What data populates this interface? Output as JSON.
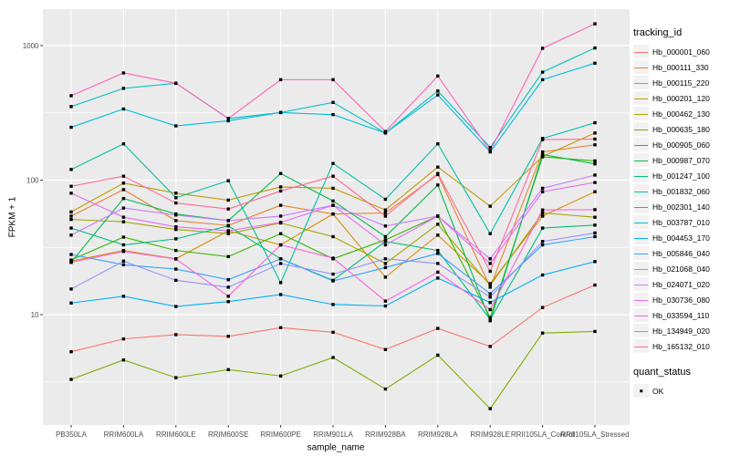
{
  "chart_data": {
    "type": "line",
    "title": "",
    "xlabel": "sample_name",
    "ylabel": "FPKM + 1",
    "y_scale": "log10",
    "y_tick_labels": [
      "10",
      "100",
      "1000"
    ],
    "y_ticks": [
      10,
      100,
      1000
    ],
    "y_minor_ticks": [
      3.1623,
      31.623,
      316.23
    ],
    "ylim": [
      1.5,
      1900
    ],
    "grid": true,
    "legend_position": "right",
    "panel_bg": "#EBEBEB",
    "grid_color": "#FFFFFF",
    "point_color": "#000000",
    "tick_label_color": "#4D4D4D",
    "legend_title": "tracking_id",
    "quant_status": {
      "title": "quant_status",
      "items": [
        {
          "label": "OK"
        }
      ]
    },
    "categories": [
      "PB350LA",
      "RRIM600LA",
      "RRIM600LE",
      "RRIM600SE",
      "RRIM600PE",
      "RRIM901LA",
      "RRIM928BA",
      "RRIM928LA",
      "RRIM928LE",
      "RRII105LA_Control",
      "RRII105LA_Stressed"
    ],
    "series": [
      {
        "name": "Hb_000001_060",
        "color": "#F8766D",
        "values": [
          5.3,
          6.6,
          7.1,
          6.9,
          8.0,
          7.4,
          5.5,
          7.9,
          5.8,
          11.3,
          16.6
        ]
      },
      {
        "name": "Hb_000111_330",
        "color": "#EA8331",
        "values": [
          54,
          85,
          50,
          46,
          65,
          56,
          57,
          110,
          16,
          162,
          183
        ]
      },
      {
        "name": "Hb_000115_220",
        "color": "#D89000",
        "values": [
          25,
          30,
          26,
          42,
          33,
          56,
          19,
          39,
          17,
          54,
          82
        ]
      },
      {
        "name": "Hb_000201_120",
        "color": "#C09B00",
        "values": [
          58,
          95,
          80,
          71,
          89,
          87,
          60,
          125,
          64,
          150,
          224
        ]
      },
      {
        "name": "Hb_000462_130",
        "color": "#A3A500",
        "values": [
          51,
          49,
          43,
          40,
          48,
          38,
          24,
          47,
          16.5,
          57,
          53
        ]
      },
      {
        "name": "Hb_000635_180",
        "color": "#7CAE00",
        "values": [
          3.3,
          4.6,
          3.4,
          3.9,
          3.5,
          4.8,
          2.8,
          5.0,
          2.0,
          7.3,
          7.5
        ]
      },
      {
        "name": "Hb_000905_060",
        "color": "#39B600",
        "values": [
          25.5,
          37.7,
          30,
          27,
          40,
          26,
          36,
          54,
          9.5,
          149,
          139
        ]
      },
      {
        "name": "Hb_000987_070",
        "color": "#00BB4E",
        "values": [
          24.5,
          73,
          56,
          50,
          112,
          70,
          38,
          92,
          9.0,
          155,
          132
        ]
      },
      {
        "name": "Hb_001247_100",
        "color": "#00BF7D",
        "values": [
          44,
          33,
          36.6,
          45.7,
          26,
          18,
          35,
          30,
          9.2,
          44,
          46.3
        ]
      },
      {
        "name": "Hb_001832_060",
        "color": "#00C1A3",
        "values": [
          120,
          186,
          74,
          99,
          17.3,
          133,
          72,
          186,
          40,
          204,
          267
        ]
      },
      {
        "name": "Hb_002301_140",
        "color": "#00BFC4",
        "values": [
          352,
          481,
          525,
          287,
          318,
          378,
          224,
          460,
          175,
          635,
          960
        ]
      },
      {
        "name": "Hb_003787_010",
        "color": "#00BAE0",
        "values": [
          247,
          338,
          253,
          276,
          318,
          307,
          224,
          430,
          162,
          558,
          740
        ]
      },
      {
        "name": "Hb_004453_170",
        "color": "#00B0F6",
        "values": [
          12.2,
          13.7,
          11.5,
          12.5,
          14.1,
          11.9,
          11.6,
          18.7,
          12.3,
          19.7,
          24.8
        ]
      },
      {
        "name": "Hb_005846_040",
        "color": "#35A2FF",
        "values": [
          28,
          23.5,
          21.8,
          18.2,
          26,
          17.8,
          22.4,
          28.5,
          14.3,
          33,
          38
        ]
      },
      {
        "name": "Hb_021068_040",
        "color": "#9590FF",
        "values": [
          15.5,
          25,
          18,
          16,
          24,
          20,
          26,
          24,
          13.5,
          35,
          40.5
        ]
      },
      {
        "name": "Hb_024071_020",
        "color": "#C77CFF",
        "values": [
          39,
          62,
          55,
          50,
          54,
          65,
          45.6,
          54,
          26,
          87,
          109
        ]
      },
      {
        "name": "Hb_030736_080",
        "color": "#E76BF3",
        "values": [
          80,
          53,
          45,
          42,
          48.5,
          65,
          33,
          54,
          24,
          82,
          96
        ]
      },
      {
        "name": "Hb_033594_110",
        "color": "#FA62DB",
        "values": [
          24.5,
          29.5,
          25.9,
          13.7,
          33,
          26.3,
          12.6,
          20.7,
          10.9,
          60,
          60.3
        ]
      },
      {
        "name": "Hb_134949_020",
        "color": "#FF62BC",
        "values": [
          424,
          626,
          525,
          287,
          558,
          558,
          230,
          594,
          165,
          955,
          1452
        ]
      },
      {
        "name": "Hb_165132_010",
        "color": "#FF6A98",
        "values": [
          90,
          107,
          67.6,
          61,
          83,
          107,
          54,
          112,
          21,
          200,
          202
        ]
      }
    ]
  }
}
